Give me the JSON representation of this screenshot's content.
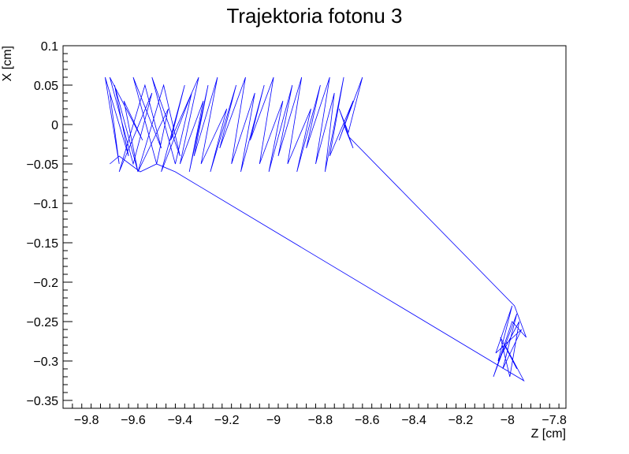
{
  "chart_data": {
    "type": "line",
    "title": "Trajektoria fotonu 3",
    "xlabel": "Z [cm]",
    "ylabel": "X [cm]",
    "xlim": [
      -9.9,
      -7.75
    ],
    "ylim": [
      -0.36,
      0.1
    ],
    "x_ticks": [
      "-9.8",
      "-9.6",
      "-9.4",
      "-9.2",
      "-9",
      "-8.8",
      "-8.6",
      "-8.4",
      "-8.2",
      "-8",
      "-7.8"
    ],
    "y_ticks": [
      "0.1",
      "0.05",
      "0",
      "-0.05",
      "-0.1",
      "-0.15",
      "-0.2",
      "-0.25",
      "-0.3",
      "-0.35"
    ],
    "grid": false,
    "series": [
      {
        "color": "#0000ff",
        "x": [
          -9.7,
          -9.66,
          -9.72,
          -9.62,
          -9.68,
          -9.58,
          -9.64,
          -9.56,
          -9.7,
          -9.6,
          -9.52,
          -9.66,
          -9.55,
          -9.48,
          -9.6,
          -9.5,
          -9.45,
          -9.58,
          -9.47,
          -9.4,
          -9.52,
          -9.42,
          -9.35,
          -9.48,
          -9.38,
          -9.44,
          -9.32,
          -9.4,
          -9.3,
          -9.36,
          -9.28,
          -9.34,
          -9.24,
          -9.31,
          -9.2,
          -9.27,
          -9.16,
          -9.23,
          -9.12,
          -9.18,
          -9.08,
          -9.14,
          -9.04,
          -9.1,
          -9.0,
          -9.06,
          -8.96,
          -9.02,
          -8.92,
          -8.98,
          -8.88,
          -8.94,
          -8.84,
          -8.9,
          -8.8,
          -8.86,
          -8.76,
          -8.82,
          -8.74,
          -8.78,
          -8.7,
          -8.76,
          -8.66,
          -8.72,
          -8.62,
          -8.68,
          -8.72,
          -8.66,
          -8.7,
          -8.68,
          -7.97,
          -7.92,
          -7.98,
          -8.06,
          -7.96,
          -8.02,
          -7.94,
          -8.05,
          -7.98,
          -8.04,
          -7.95,
          -7.99,
          -8.03,
          -7.96,
          -8.01,
          -7.93,
          -9.42,
          -9.5,
          -9.57,
          -9.66,
          -9.7
        ],
        "y": [
          0.04,
          -0.05,
          0.06,
          -0.04,
          0.05,
          -0.06,
          0.03,
          -0.02,
          0.06,
          -0.05,
          0.04,
          -0.06,
          0.05,
          -0.03,
          0.06,
          -0.05,
          0.02,
          -0.06,
          0.05,
          -0.04,
          0.06,
          -0.05,
          0.04,
          -0.06,
          0.05,
          -0.02,
          0.06,
          -0.05,
          0.03,
          -0.06,
          0.05,
          -0.04,
          0.06,
          -0.05,
          0.02,
          -0.06,
          0.05,
          -0.03,
          0.06,
          -0.05,
          0.04,
          -0.06,
          0.05,
          -0.02,
          0.06,
          -0.05,
          0.03,
          -0.06,
          0.05,
          -0.04,
          0.06,
          -0.05,
          0.02,
          -0.06,
          0.05,
          -0.03,
          0.06,
          -0.05,
          0.04,
          -0.06,
          0.06,
          -0.04,
          0.03,
          -0.02,
          0.06,
          -0.01,
          0.02,
          -0.03,
          0.0,
          -0.015,
          -0.23,
          -0.27,
          -0.25,
          -0.32,
          -0.24,
          -0.31,
          -0.26,
          -0.29,
          -0.23,
          -0.3,
          -0.25,
          -0.32,
          -0.27,
          -0.31,
          -0.28,
          -0.325,
          -0.06,
          -0.05,
          -0.06,
          -0.04,
          -0.05
        ]
      }
    ]
  }
}
